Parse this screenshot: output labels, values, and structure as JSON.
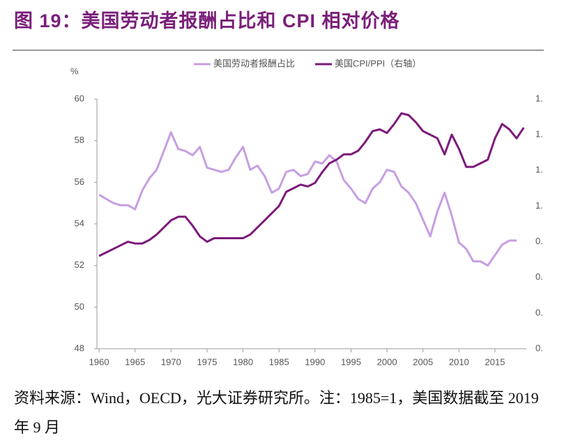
{
  "chart_data": {
    "type": "line",
    "title": "图 19：美国劳动者报酬占比和 CPI 相对价格",
    "ylabel": "%",
    "source": "资料来源：Wind，OECD，光大证券研究所。注：1985=1，美国数据截至 2019 年 9 月",
    "x": [
      1960,
      1961,
      1962,
      1963,
      1964,
      1965,
      1966,
      1967,
      1968,
      1969,
      1970,
      1971,
      1972,
      1973,
      1974,
      1975,
      1976,
      1977,
      1978,
      1979,
      1980,
      1981,
      1982,
      1983,
      1984,
      1985,
      1986,
      1987,
      1988,
      1989,
      1990,
      1991,
      1992,
      1993,
      1994,
      1995,
      1996,
      1997,
      1998,
      1999,
      2000,
      2001,
      2002,
      2003,
      2004,
      2005,
      2006,
      2007,
      2008,
      2009,
      2010,
      2011,
      2012,
      2013,
      2014,
      2015,
      2016,
      2017,
      2018,
      2019
    ],
    "xlim": [
      1959.7,
      2019.36
    ],
    "xticks": [
      1960,
      1965,
      1970,
      1975,
      1980,
      1985,
      1990,
      1995,
      2000,
      2005,
      2010,
      2015
    ],
    "ylim": [
      48,
      60
    ],
    "yticks": [
      48,
      50,
      52,
      54,
      56,
      58,
      60
    ],
    "y2lim": [
      0.2,
      1.6
    ],
    "y2ticks": [
      {
        "value": 0.2,
        "label": "0."
      },
      {
        "value": 0.4,
        "label": "0."
      },
      {
        "value": 0.6,
        "label": "0."
      },
      {
        "value": 0.8,
        "label": "0."
      },
      {
        "value": 1.0,
        "label": "1."
      },
      {
        "value": 1.2,
        "label": "1."
      },
      {
        "value": 1.4,
        "label": "1."
      },
      {
        "value": 1.6,
        "label": "1."
      }
    ],
    "grid": false,
    "legend": "top",
    "series": [
      {
        "name": "美国劳动者报酬占比",
        "color": "#c79ee3",
        "values": [
          55.4,
          55.2,
          55.0,
          54.9,
          54.9,
          54.7,
          55.6,
          56.2,
          56.6,
          57.5,
          58.4,
          57.6,
          57.5,
          57.3,
          57.7,
          56.7,
          56.6,
          56.5,
          56.6,
          57.2,
          57.7,
          56.6,
          56.8,
          56.3,
          55.5,
          55.7,
          56.5,
          56.6,
          56.3,
          56.4,
          57.0,
          56.9,
          57.3,
          57.0,
          56.1,
          55.7,
          55.2,
          55.0,
          55.7,
          56.0,
          56.6,
          56.5,
          55.8,
          55.5,
          55.0,
          54.2,
          53.4,
          54.6,
          55.5,
          54.4,
          53.1,
          52.8,
          52.2,
          52.2,
          52.0,
          52.5,
          53.0,
          53.2,
          53.2,
          null
        ]
      },
      {
        "name": "美国CPI/PPI（右轴）",
        "color": "#7b1a7b",
        "axis": "y2",
        "values": [
          0.72,
          0.74,
          0.76,
          0.78,
          0.8,
          0.79,
          0.79,
          0.81,
          0.84,
          0.88,
          0.92,
          0.94,
          0.94,
          0.89,
          0.83,
          0.8,
          0.82,
          0.82,
          0.82,
          0.82,
          0.82,
          0.84,
          0.88,
          0.92,
          0.96,
          1.0,
          1.08,
          1.1,
          1.12,
          1.11,
          1.13,
          1.19,
          1.24,
          1.26,
          1.29,
          1.29,
          1.31,
          1.36,
          1.42,
          1.43,
          1.41,
          1.46,
          1.52,
          1.51,
          1.47,
          1.42,
          1.4,
          1.38,
          1.29,
          1.4,
          1.32,
          1.22,
          1.22,
          1.24,
          1.26,
          1.38,
          1.46,
          1.43,
          1.38,
          1.44
        ]
      }
    ]
  }
}
